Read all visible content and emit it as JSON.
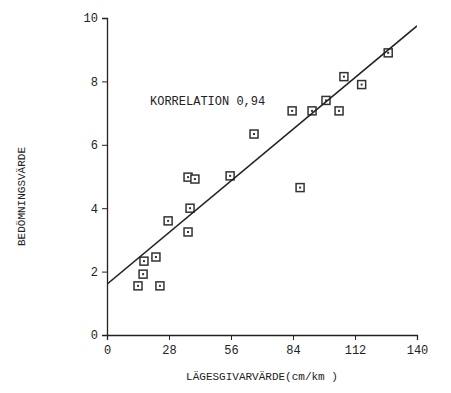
{
  "chart_data": {
    "type": "scatter",
    "x_label": "LÄGESGIVARVÄRDE(cm/km )",
    "y_label": "BEDÖMNINGSVÄRDE",
    "annotation": "KORRELATION 0,94",
    "xlim": [
      0,
      140
    ],
    "ylim": [
      0,
      10
    ],
    "xticks": [
      0,
      28,
      56,
      84,
      112,
      140
    ],
    "yticks": [
      0,
      2,
      4,
      6,
      8,
      10
    ],
    "grid": false,
    "series": [
      {
        "type": "scatter",
        "marker": "square",
        "color": "#333333",
        "x": [
          14.0,
          16.3,
          16.7,
          22.1,
          23.9,
          27.6,
          36.6,
          39.7,
          37.5,
          36.6,
          55.6,
          66.4,
          83.6,
          87.2,
          92.6,
          98.9,
          104.8,
          107.0,
          115.0,
          127.0
        ],
        "values": [
          1.55,
          1.92,
          2.33,
          2.46,
          1.55,
          3.6,
          4.98,
          4.92,
          4.0,
          3.25,
          5.02,
          6.34,
          7.07,
          4.65,
          7.07,
          7.4,
          7.07,
          8.15,
          7.9,
          8.9
        ]
      },
      {
        "type": "line",
        "line_style": "solid",
        "color": "#222222",
        "x": [
          0,
          140
        ],
        "values": [
          1.6,
          9.75
        ]
      }
    ]
  }
}
